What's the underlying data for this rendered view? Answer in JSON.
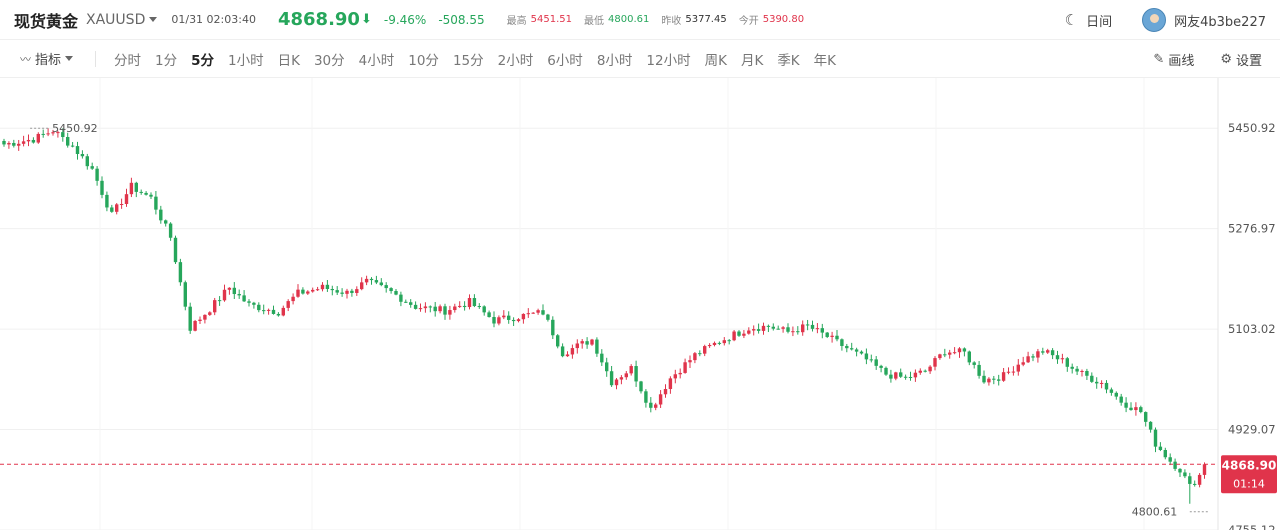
{
  "header": {
    "name": "现货黄金",
    "code": "XAUUSD",
    "time": "01/31 02:03:40",
    "price": "4868.90",
    "change_pct": "-9.46%",
    "change": "-508.55",
    "high_label": "最高",
    "high": "5451.51",
    "low_label": "最低",
    "low": "4800.61",
    "prev_label": "昨收",
    "prev": "5377.45",
    "open_label": "今开",
    "open": "5390.80",
    "day_mode": "日间",
    "user": "网友4b3be227"
  },
  "toolbar": {
    "indicator": "指标",
    "timeframes": [
      "分时",
      "1分",
      "5分",
      "1小时",
      "日K",
      "30分",
      "4小时",
      "10分",
      "15分",
      "2小时",
      "6小时",
      "8小时",
      "12小时",
      "周K",
      "月K",
      "季K",
      "年K"
    ],
    "active_timeframe": "5分",
    "draw": "画线",
    "settings": "设置"
  },
  "colors": {
    "up": "#e0344b",
    "down": "#26a65b"
  },
  "chart_data": {
    "type": "candlestick",
    "y_ticks": [
      "5450.92",
      "5276.97",
      "5103.02",
      "4929.07",
      "4755.12"
    ],
    "ylim": [
      4755.12,
      5537.9
    ],
    "current_price": "4868.90",
    "countdown": "01:14",
    "max_marker": "5450.92",
    "min_marker": "4800.61",
    "waypoints": [
      [
        0,
        5423
      ],
      [
        6,
        5432
      ],
      [
        10,
        5447
      ],
      [
        14,
        5420
      ],
      [
        18,
        5380
      ],
      [
        22,
        5300
      ],
      [
        26,
        5350
      ],
      [
        30,
        5330
      ],
      [
        34,
        5262
      ],
      [
        38,
        5105
      ],
      [
        42,
        5138
      ],
      [
        46,
        5175
      ],
      [
        50,
        5145
      ],
      [
        56,
        5133
      ],
      [
        60,
        5165
      ],
      [
        65,
        5175
      ],
      [
        70,
        5166
      ],
      [
        74,
        5185
      ],
      [
        79,
        5167
      ],
      [
        84,
        5142
      ],
      [
        90,
        5135
      ],
      [
        95,
        5150
      ],
      [
        100,
        5118
      ],
      [
        105,
        5125
      ],
      [
        110,
        5132
      ],
      [
        114,
        5062
      ],
      [
        120,
        5085
      ],
      [
        124,
        5012
      ],
      [
        128,
        5035
      ],
      [
        132,
        4965
      ],
      [
        136,
        5018
      ],
      [
        141,
        5058
      ],
      [
        146,
        5082
      ],
      [
        152,
        5105
      ],
      [
        156,
        5108
      ],
      [
        160,
        5098
      ],
      [
        164,
        5108
      ],
      [
        168,
        5090
      ],
      [
        172,
        5070
      ],
      [
        176,
        5050
      ],
      [
        180,
        5025
      ],
      [
        184,
        5018
      ],
      [
        188,
        5030
      ],
      [
        192,
        5065
      ],
      [
        196,
        5062
      ],
      [
        200,
        5015
      ],
      [
        204,
        5022
      ],
      [
        208,
        5050
      ],
      [
        212,
        5065
      ],
      [
        216,
        5048
      ],
      [
        220,
        5025
      ],
      [
        224,
        5010
      ],
      [
        228,
        4978
      ],
      [
        232,
        4960
      ],
      [
        235,
        4905
      ],
      [
        238,
        4875
      ],
      [
        240,
        4860
      ],
      [
        242,
        4830
      ],
      [
        244,
        4850
      ],
      [
        245,
        4868.9
      ]
    ]
  }
}
